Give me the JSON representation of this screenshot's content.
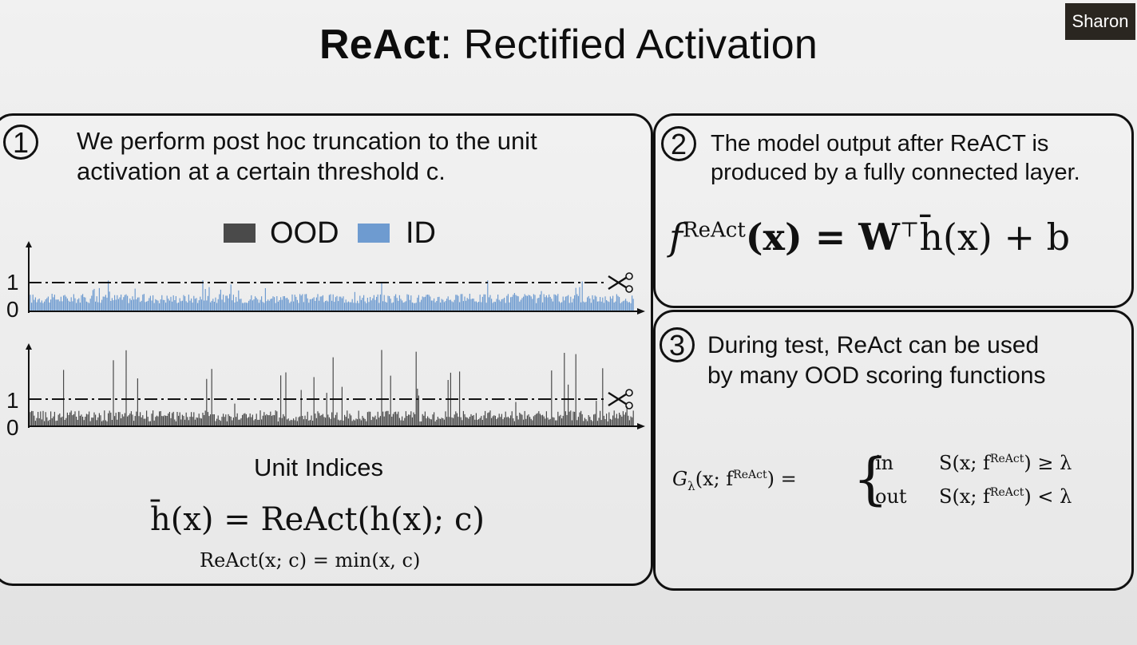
{
  "title": {
    "bold": "ReAct",
    "rest": ": Rectified Activation"
  },
  "participant_badge": "Sharon",
  "panel1": {
    "number": "1",
    "text": "We perform post hoc truncation to the unit\nactivation at a certain threshold c.",
    "legend": {
      "ood": "OOD",
      "id": "ID"
    },
    "ood_color": "#4a4a4a",
    "id_color": "#6e9bd0",
    "axis_labels": {
      "one": "1",
      "zero": "0",
      "one_b": "1",
      "zero_b": "0"
    },
    "unit_indices": "Unit Indices",
    "eq_main": "h̄(x) = ReAct(h(x); c)",
    "eq_sub": "ReAct(x; c) = min(x, c)"
  },
  "panel2": {
    "number": "2",
    "text": "The model output after ReACT is\nproduced by a fully connected layer.",
    "eq": {
      "f": "f",
      "sup": "ReAct",
      "rest": "(x) = W",
      "top": "⊤",
      "tail": "h̄(x) + b"
    }
  },
  "panel3": {
    "number": "3",
    "text": "During test, ReAct can be used\nby many OOD scoring functions",
    "eq": {
      "lhs": "G",
      "lhs_sub": "λ",
      "lhs_args": "(x; f",
      "sup": "ReAct",
      "close": ") =",
      "case1_label": "in",
      "case1_cond": "S(x; f",
      "case1_cond_end": ") ≥ λ",
      "case2_label": "out",
      "case2_cond": "S(x; f",
      "case2_cond_end": ") < λ"
    }
  }
}
